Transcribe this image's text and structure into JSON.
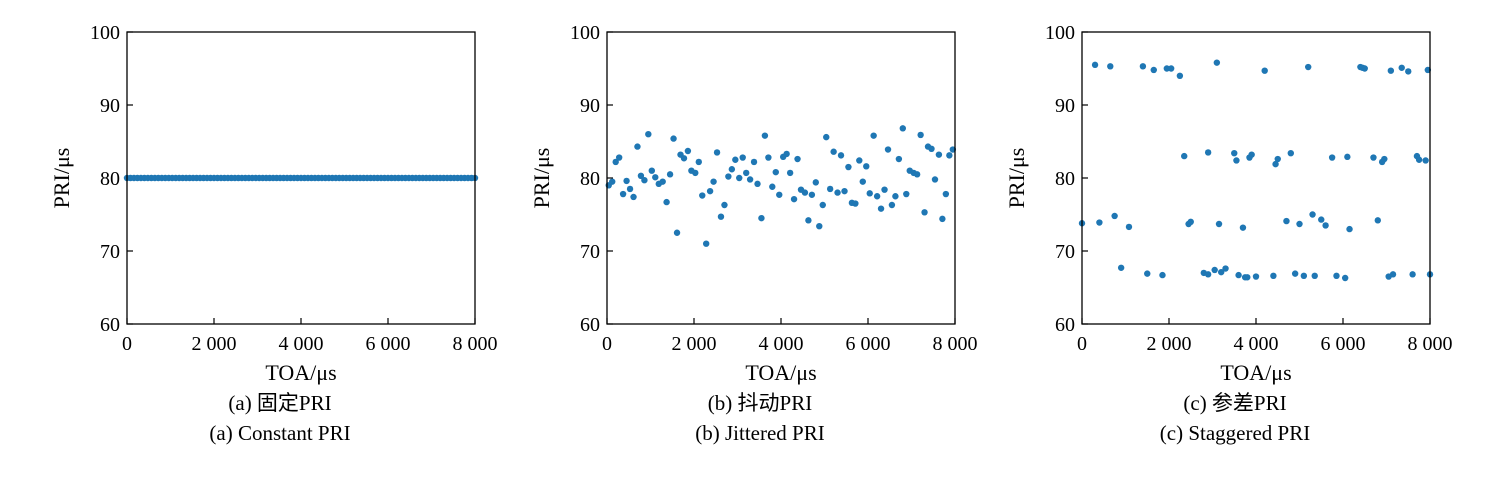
{
  "chart_data": [
    {
      "type": "scatter",
      "caption_zh": "(a) 固定PRI",
      "caption_en": "(a) Constant PRI",
      "xlabel": "TOA/μs",
      "ylabel": "PRI/μs",
      "xlim": [
        0,
        8000
      ],
      "ylim": [
        60,
        100
      ],
      "xticks": [
        "0",
        "2 000",
        "4 000",
        "6 000",
        "8 000"
      ],
      "yticks": [
        "60",
        "70",
        "80",
        "90",
        "100"
      ],
      "point_color": "#1f77b4",
      "x": [
        0,
        80,
        160,
        240,
        320,
        400,
        480,
        560,
        640,
        720,
        800,
        880,
        960,
        1040,
        1120,
        1200,
        1280,
        1360,
        1440,
        1520,
        1600,
        1680,
        1760,
        1840,
        1920,
        2000,
        2080,
        2160,
        2240,
        2320,
        2400,
        2480,
        2560,
        2640,
        2720,
        2800,
        2880,
        2960,
        3040,
        3120,
        3200,
        3280,
        3360,
        3440,
        3520,
        3600,
        3680,
        3760,
        3840,
        3920,
        4000,
        4080,
        4160,
        4240,
        4320,
        4400,
        4480,
        4560,
        4640,
        4720,
        4800,
        4880,
        4960,
        5040,
        5120,
        5200,
        5280,
        5360,
        5440,
        5520,
        5600,
        5680,
        5760,
        5840,
        5920,
        6000,
        6080,
        6160,
        6240,
        6320,
        6400,
        6480,
        6560,
        6640,
        6720,
        6800,
        6880,
        6960,
        7040,
        7120,
        7200,
        7280,
        7360,
        7440,
        7520,
        7600,
        7680,
        7760,
        7840,
        7920,
        8000
      ],
      "y": [
        80,
        80,
        80,
        80,
        80,
        80,
        80,
        80,
        80,
        80,
        80,
        80,
        80,
        80,
        80,
        80,
        80,
        80,
        80,
        80,
        80,
        80,
        80,
        80,
        80,
        80,
        80,
        80,
        80,
        80,
        80,
        80,
        80,
        80,
        80,
        80,
        80,
        80,
        80,
        80,
        80,
        80,
        80,
        80,
        80,
        80,
        80,
        80,
        80,
        80,
        80,
        80,
        80,
        80,
        80,
        80,
        80,
        80,
        80,
        80,
        80,
        80,
        80,
        80,
        80,
        80,
        80,
        80,
        80,
        80,
        80,
        80,
        80,
        80,
        80,
        80,
        80,
        80,
        80,
        80,
        80,
        80,
        80,
        80,
        80,
        80,
        80,
        80,
        80,
        80,
        80,
        80,
        80,
        80,
        80,
        80,
        80,
        80,
        80,
        80,
        80
      ]
    },
    {
      "type": "scatter",
      "caption_zh": "(b) 抖动PRI",
      "caption_en": "(b) Jittered PRI",
      "xlabel": "TOA/μs",
      "ylabel": "PRI/μs",
      "xlim": [
        0,
        8000
      ],
      "ylim": [
        60,
        100
      ],
      "xticks": [
        "0",
        "2 000",
        "4 000",
        "6 000",
        "8 000"
      ],
      "yticks": [
        "60",
        "70",
        "80",
        "90",
        "100"
      ],
      "point_color": "#1f77b4",
      "x": [
        40,
        120,
        200,
        280,
        370,
        450,
        530,
        610,
        700,
        780,
        860,
        950,
        1030,
        1110,
        1190,
        1280,
        1370,
        1450,
        1530,
        1610,
        1690,
        1770,
        1860,
        1940,
        2030,
        2110,
        2190,
        2280,
        2370,
        2450,
        2530,
        2620,
        2700,
        2790,
        2870,
        2950,
        3040,
        3120,
        3200,
        3290,
        3380,
        3460,
        3550,
        3630,
        3710,
        3800,
        3880,
        3960,
        4050,
        4130,
        4210,
        4300,
        4380,
        4460,
        4550,
        4630,
        4710,
        4800,
        4880,
        4960,
        5040,
        5130,
        5210,
        5300,
        5380,
        5460,
        5550,
        5630,
        5710,
        5800,
        5880,
        5960,
        6040,
        6130,
        6210,
        6300,
        6380,
        6460,
        6550,
        6630,
        6710,
        6800,
        6880,
        6960,
        7050,
        7130,
        7210,
        7300,
        7380,
        7460,
        7540,
        7630,
        7710,
        7790,
        7870,
        7950
      ],
      "y": [
        79.0,
        79.5,
        82.2,
        82.8,
        77.8,
        79.6,
        78.5,
        77.4,
        84.3,
        80.3,
        79.7,
        86.0,
        81.0,
        80.1,
        79.2,
        79.5,
        76.7,
        80.5,
        85.4,
        72.5,
        83.2,
        82.7,
        83.7,
        81.0,
        80.7,
        82.2,
        77.6,
        71.0,
        78.2,
        79.5,
        83.5,
        74.7,
        76.3,
        80.2,
        81.2,
        82.5,
        80.0,
        82.8,
        80.7,
        79.8,
        82.2,
        79.2,
        74.5,
        85.8,
        82.8,
        78.8,
        80.8,
        77.7,
        82.9,
        83.3,
        80.7,
        77.1,
        82.6,
        78.4,
        78.0,
        74.2,
        77.7,
        79.4,
        73.4,
        76.3,
        85.6,
        78.5,
        83.6,
        78.0,
        83.1,
        78.2,
        81.5,
        76.6,
        76.5,
        82.4,
        79.5,
        81.6,
        77.9,
        85.8,
        77.5,
        75.8,
        78.4,
        83.9,
        76.3,
        77.5,
        82.6,
        86.8,
        77.8,
        81.0,
        80.7,
        80.5,
        85.9,
        75.3,
        84.3,
        84.0,
        79.8,
        83.2,
        74.4,
        77.8,
        83.1,
        83.9
      ]
    },
    {
      "type": "scatter",
      "caption_zh": "(c) 参差PRI",
      "caption_en": "(c) Staggered PRI",
      "xlabel": "TOA/μs",
      "ylabel": "PRI/μs",
      "xlim": [
        0,
        8000
      ],
      "ylim": [
        60,
        100
      ],
      "xticks": [
        "0",
        "2 000",
        "4 000",
        "6 000",
        "8 000"
      ],
      "yticks": [
        "60",
        "70",
        "80",
        "90",
        "100"
      ],
      "point_color": "#1f77b4",
      "x": [
        0,
        300,
        400,
        650,
        750,
        900,
        1080,
        1400,
        1500,
        1650,
        1850,
        1950,
        2050,
        2250,
        2350,
        2450,
        2500,
        2800,
        2900,
        2900,
        3050,
        3100,
        3150,
        3200,
        3300,
        3500,
        3550,
        3600,
        3700,
        3750,
        3800,
        3850,
        3900,
        4000,
        4200,
        4400,
        4450,
        4500,
        4700,
        4800,
        4900,
        5000,
        5100,
        5200,
        5300,
        5350,
        5500,
        5600,
        5750,
        5850,
        6050,
        6100,
        6150,
        6400,
        6450,
        6500,
        6700,
        6800,
        6900,
        6950,
        7050,
        7100,
        7150,
        7350,
        7500,
        7600,
        7700,
        7750,
        7900,
        7950,
        8000
      ],
      "y": [
        73.8,
        95.5,
        73.9,
        95.3,
        74.8,
        67.7,
        73.3,
        95.3,
        66.9,
        94.8,
        66.7,
        95.0,
        95.0,
        94.0,
        83.0,
        73.7,
        74.0,
        67.0,
        83.5,
        66.8,
        67.4,
        95.8,
        73.7,
        67.1,
        67.6,
        83.4,
        82.4,
        66.7,
        73.2,
        66.4,
        66.4,
        82.8,
        83.2,
        66.5,
        94.7,
        66.6,
        81.9,
        82.6,
        74.1,
        83.4,
        66.9,
        73.7,
        66.6,
        95.2,
        75.0,
        66.6,
        74.3,
        73.5,
        82.8,
        66.6,
        66.3,
        82.9,
        73.0,
        95.2,
        95.1,
        95.0,
        82.8,
        74.2,
        82.2,
        82.6,
        66.5,
        94.7,
        66.8,
        95.1,
        94.6,
        66.8,
        83.0,
        82.5,
        82.4,
        94.8,
        66.8
      ]
    }
  ]
}
